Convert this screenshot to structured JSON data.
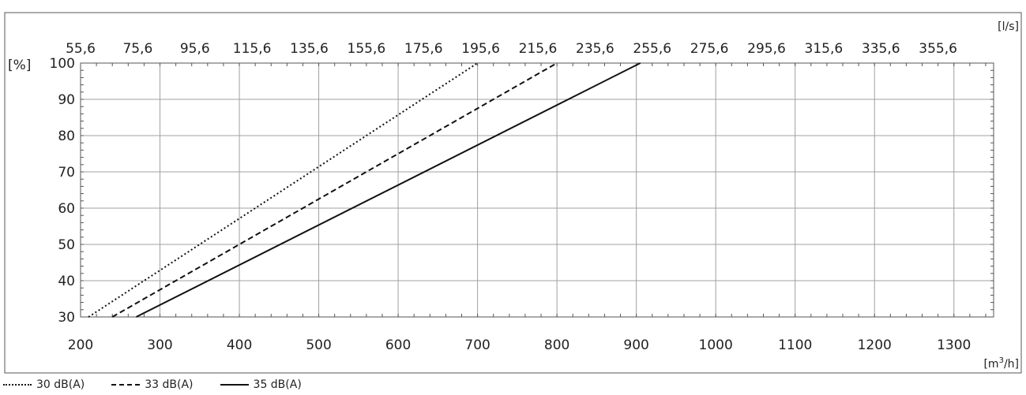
{
  "chart_data": {
    "type": "line",
    "title": "",
    "x_axis": {
      "unit": "[m3/h]",
      "unit_base": "[m",
      "unit_sup": "3",
      "unit_tail": "/h]",
      "ticks": [
        200,
        300,
        400,
        500,
        600,
        700,
        800,
        900,
        1000,
        1100,
        1200,
        1300
      ],
      "range": [
        200,
        1350
      ],
      "minor_step": 20
    },
    "x2_axis": {
      "unit": "[l/s]",
      "ticks": [
        "55,6",
        "75,6",
        "95,6",
        "115,6",
        "135,6",
        "155,6",
        "175,6",
        "195,6",
        "215,6",
        "235,6",
        "255,6",
        "275,6",
        "295,6",
        "315,6",
        "335,6",
        "355,6"
      ]
    },
    "y_axis": {
      "unit": "[%]",
      "ticks": [
        30,
        40,
        50,
        60,
        70,
        80,
        90,
        100
      ],
      "range": [
        30,
        100
      ],
      "minor_step": 2
    },
    "grid": true,
    "legend_position": "bottom-left",
    "series": [
      {
        "name": "30 dB(A)",
        "style": "dotted",
        "points": [
          [
            210,
            30
          ],
          [
            700,
            100
          ]
        ]
      },
      {
        "name": "33 dB(A)",
        "style": "dashed",
        "points": [
          [
            240,
            30
          ],
          [
            800,
            100
          ]
        ]
      },
      {
        "name": "35 dB(A)",
        "style": "solid",
        "points": [
          [
            270,
            30
          ],
          [
            905,
            100
          ]
        ]
      }
    ],
    "colors": {
      "line": "#111111",
      "grid": "#a0a0a0",
      "frame": "#555555"
    }
  }
}
